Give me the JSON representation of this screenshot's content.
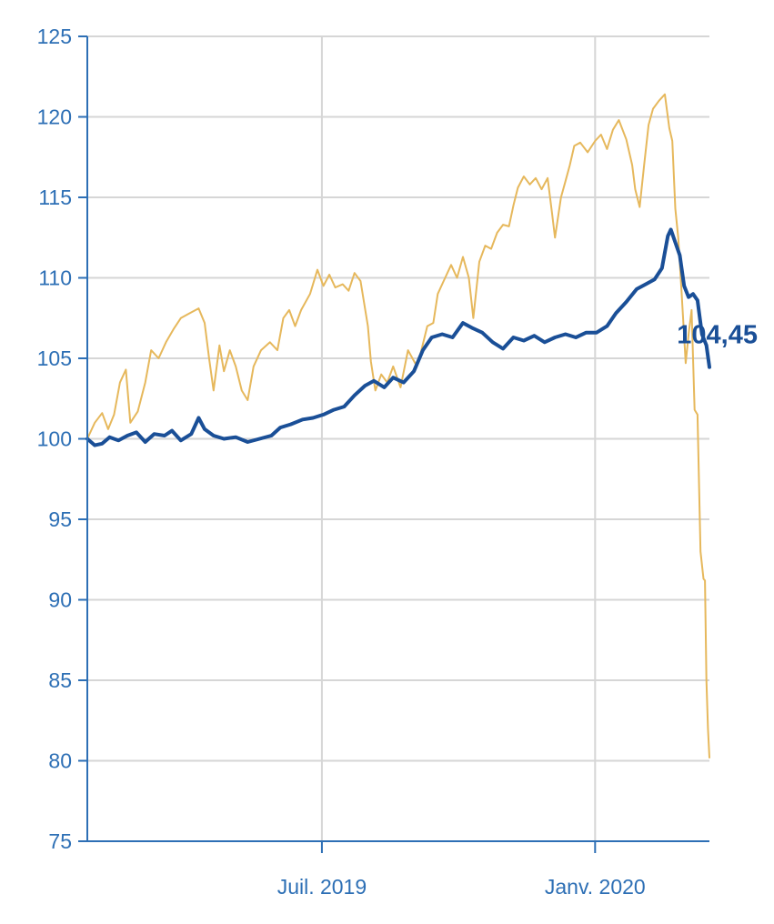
{
  "chart_data": {
    "type": "line",
    "title": "",
    "xlabel": "",
    "ylabel": "",
    "ylim": [
      75,
      125
    ],
    "yticks": [
      "75",
      "80",
      "85",
      "90",
      "95",
      "100",
      "105",
      "110",
      "115",
      "120",
      "125"
    ],
    "xlim": [
      "2019-01-24",
      "2020-03-18"
    ],
    "xticks": [
      {
        "date": "2019-07-01",
        "label": "Juil. 2019"
      },
      {
        "date": "2020-01-01",
        "label": "Janv. 2020"
      }
    ],
    "grid": true,
    "legend": "none",
    "end_label": "104,45",
    "series": [
      {
        "color": "#E6B85C",
        "points": [
          [
            "2019-01-24",
            100.0
          ],
          [
            "2019-01-29",
            101.0
          ],
          [
            "2019-02-03",
            101.6
          ],
          [
            "2019-02-07",
            100.6
          ],
          [
            "2019-02-11",
            101.5
          ],
          [
            "2019-02-15",
            103.5
          ],
          [
            "2019-02-19",
            104.3
          ],
          [
            "2019-02-22",
            101.0
          ],
          [
            "2019-02-27",
            101.7
          ],
          [
            "2019-03-04",
            103.5
          ],
          [
            "2019-03-08",
            105.5
          ],
          [
            "2019-03-13",
            105.0
          ],
          [
            "2019-03-18",
            106.0
          ],
          [
            "2019-03-23",
            106.8
          ],
          [
            "2019-03-28",
            107.5
          ],
          [
            "2019-04-03",
            107.8
          ],
          [
            "2019-04-09",
            108.1
          ],
          [
            "2019-04-13",
            107.2
          ],
          [
            "2019-04-16",
            105.0
          ],
          [
            "2019-04-19",
            103.0
          ],
          [
            "2019-04-23",
            105.8
          ],
          [
            "2019-04-26",
            104.2
          ],
          [
            "2019-04-30",
            105.5
          ],
          [
            "2019-05-04",
            104.5
          ],
          [
            "2019-05-08",
            103.0
          ],
          [
            "2019-05-12",
            102.4
          ],
          [
            "2019-05-16",
            104.5
          ],
          [
            "2019-05-21",
            105.5
          ],
          [
            "2019-05-27",
            106.0
          ],
          [
            "2019-06-01",
            105.5
          ],
          [
            "2019-06-05",
            107.5
          ],
          [
            "2019-06-09",
            108.0
          ],
          [
            "2019-06-13",
            107.0
          ],
          [
            "2019-06-17",
            108.0
          ],
          [
            "2019-06-23",
            109.0
          ],
          [
            "2019-06-28",
            110.5
          ],
          [
            "2019-07-02",
            109.5
          ],
          [
            "2019-07-06",
            110.2
          ],
          [
            "2019-07-10",
            109.4
          ],
          [
            "2019-07-15",
            109.6
          ],
          [
            "2019-07-19",
            109.2
          ],
          [
            "2019-07-23",
            110.3
          ],
          [
            "2019-07-27",
            109.8
          ],
          [
            "2019-08-01",
            107.0
          ],
          [
            "2019-08-03",
            104.8
          ],
          [
            "2019-08-06",
            103.0
          ],
          [
            "2019-08-10",
            104.0
          ],
          [
            "2019-08-14",
            103.5
          ],
          [
            "2019-08-18",
            104.5
          ],
          [
            "2019-08-23",
            103.2
          ],
          [
            "2019-08-28",
            105.5
          ],
          [
            "2019-09-03",
            104.5
          ],
          [
            "2019-09-06",
            105.5
          ],
          [
            "2019-09-10",
            107.0
          ],
          [
            "2019-09-14",
            107.2
          ],
          [
            "2019-09-17",
            109.0
          ],
          [
            "2019-09-21",
            109.8
          ],
          [
            "2019-09-26",
            110.8
          ],
          [
            "2019-09-30",
            110.0
          ],
          [
            "2019-10-04",
            111.3
          ],
          [
            "2019-10-08",
            110.0
          ],
          [
            "2019-10-11",
            107.5
          ],
          [
            "2019-10-15",
            111.0
          ],
          [
            "2019-10-19",
            112.0
          ],
          [
            "2019-10-23",
            111.8
          ],
          [
            "2019-10-27",
            112.8
          ],
          [
            "2019-10-31",
            113.3
          ],
          [
            "2019-11-04",
            113.2
          ],
          [
            "2019-11-07",
            114.5
          ],
          [
            "2019-11-10",
            115.6
          ],
          [
            "2019-11-14",
            116.3
          ],
          [
            "2019-11-18",
            115.8
          ],
          [
            "2019-11-22",
            116.2
          ],
          [
            "2019-11-26",
            115.5
          ],
          [
            "2019-11-30",
            116.2
          ],
          [
            "2019-12-03",
            114.0
          ],
          [
            "2019-12-05",
            112.5
          ],
          [
            "2019-12-09",
            115.0
          ],
          [
            "2019-12-12",
            116.0
          ],
          [
            "2019-12-15",
            117.0
          ],
          [
            "2019-12-18",
            118.2
          ],
          [
            "2019-12-22",
            118.4
          ],
          [
            "2019-12-27",
            117.8
          ],
          [
            "2020-01-01",
            118.5
          ],
          [
            "2020-01-05",
            118.9
          ],
          [
            "2020-01-09",
            118.0
          ],
          [
            "2020-01-13",
            119.2
          ],
          [
            "2020-01-17",
            119.8
          ],
          [
            "2020-01-22",
            118.6
          ],
          [
            "2020-01-26",
            117.0
          ],
          [
            "2020-01-28",
            115.5
          ],
          [
            "2020-01-31",
            114.4
          ],
          [
            "2020-02-03",
            117.0
          ],
          [
            "2020-02-06",
            119.5
          ],
          [
            "2020-02-09",
            120.5
          ],
          [
            "2020-02-13",
            121.0
          ],
          [
            "2020-02-17",
            121.4
          ],
          [
            "2020-02-20",
            119.3
          ],
          [
            "2020-02-22",
            118.5
          ],
          [
            "2020-02-24",
            114.3
          ],
          [
            "2020-02-26",
            112.5
          ],
          [
            "2020-02-28",
            109.5
          ],
          [
            "2020-03-02",
            104.7
          ],
          [
            "2020-03-04",
            106.5
          ],
          [
            "2020-03-06",
            108.0
          ],
          [
            "2020-03-08",
            101.8
          ],
          [
            "2020-03-10",
            101.5
          ],
          [
            "2020-03-12",
            93.0
          ],
          [
            "2020-03-14",
            91.3
          ],
          [
            "2020-03-15",
            91.2
          ],
          [
            "2020-03-16",
            85.0
          ],
          [
            "2020-03-17",
            82.0
          ],
          [
            "2020-03-18",
            80.2
          ]
        ]
      },
      {
        "color": "#1A4F97",
        "points": [
          [
            "2019-01-24",
            100.0
          ],
          [
            "2019-01-29",
            99.6
          ],
          [
            "2019-02-03",
            99.7
          ],
          [
            "2019-02-08",
            100.1
          ],
          [
            "2019-02-14",
            99.9
          ],
          [
            "2019-02-20",
            100.2
          ],
          [
            "2019-02-26",
            100.4
          ],
          [
            "2019-03-04",
            99.8
          ],
          [
            "2019-03-10",
            100.3
          ],
          [
            "2019-03-17",
            100.2
          ],
          [
            "2019-03-22",
            100.5
          ],
          [
            "2019-03-28",
            99.9
          ],
          [
            "2019-04-04",
            100.3
          ],
          [
            "2019-04-09",
            101.3
          ],
          [
            "2019-04-13",
            100.6
          ],
          [
            "2019-04-19",
            100.2
          ],
          [
            "2019-04-26",
            100.0
          ],
          [
            "2019-05-04",
            100.1
          ],
          [
            "2019-05-12",
            99.8
          ],
          [
            "2019-05-20",
            100.0
          ],
          [
            "2019-05-28",
            100.2
          ],
          [
            "2019-06-03",
            100.7
          ],
          [
            "2019-06-10",
            100.9
          ],
          [
            "2019-06-18",
            101.2
          ],
          [
            "2019-06-25",
            101.3
          ],
          [
            "2019-07-02",
            101.5
          ],
          [
            "2019-07-09",
            101.8
          ],
          [
            "2019-07-16",
            102.0
          ],
          [
            "2019-07-23",
            102.7
          ],
          [
            "2019-07-30",
            103.3
          ],
          [
            "2019-08-05",
            103.6
          ],
          [
            "2019-08-12",
            103.2
          ],
          [
            "2019-08-18",
            103.8
          ],
          [
            "2019-08-25",
            103.5
          ],
          [
            "2019-09-01",
            104.2
          ],
          [
            "2019-09-07",
            105.5
          ],
          [
            "2019-09-13",
            106.3
          ],
          [
            "2019-09-20",
            106.5
          ],
          [
            "2019-09-27",
            106.3
          ],
          [
            "2019-10-04",
            107.2
          ],
          [
            "2019-10-10",
            106.9
          ],
          [
            "2019-10-17",
            106.6
          ],
          [
            "2019-10-24",
            106.0
          ],
          [
            "2019-10-31",
            105.6
          ],
          [
            "2019-11-07",
            106.3
          ],
          [
            "2019-11-14",
            106.1
          ],
          [
            "2019-11-21",
            106.4
          ],
          [
            "2019-11-28",
            106.0
          ],
          [
            "2019-12-05",
            106.3
          ],
          [
            "2019-12-12",
            106.5
          ],
          [
            "2019-12-19",
            106.3
          ],
          [
            "2019-12-26",
            106.6
          ],
          [
            "2020-01-02",
            106.6
          ],
          [
            "2020-01-09",
            107.0
          ],
          [
            "2020-01-15",
            107.8
          ],
          [
            "2020-01-22",
            108.5
          ],
          [
            "2020-01-29",
            109.3
          ],
          [
            "2020-02-04",
            109.6
          ],
          [
            "2020-02-10",
            109.9
          ],
          [
            "2020-02-15",
            110.6
          ],
          [
            "2020-02-19",
            112.6
          ],
          [
            "2020-02-21",
            113.0
          ],
          [
            "2020-02-24",
            112.2
          ],
          [
            "2020-02-27",
            111.4
          ],
          [
            "2020-03-01",
            109.5
          ],
          [
            "2020-03-04",
            108.8
          ],
          [
            "2020-03-07",
            109.0
          ],
          [
            "2020-03-10",
            108.6
          ],
          [
            "2020-03-13",
            106.5
          ],
          [
            "2020-03-16",
            105.8
          ],
          [
            "2020-03-18",
            104.45
          ]
        ]
      }
    ]
  }
}
